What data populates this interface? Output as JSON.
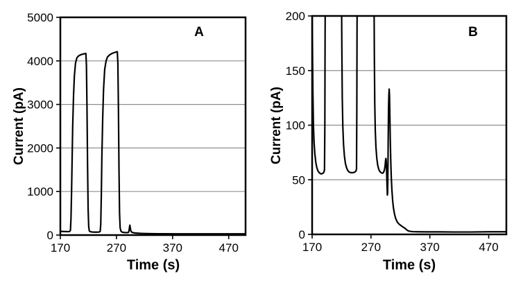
{
  "figure": {
    "background": "#ffffff",
    "line_color": "#000000",
    "grid_color": "#8f8f8f",
    "text_color": "#000000"
  },
  "chart_data": [
    {
      "type": "line",
      "panel_label": "A",
      "xlabel": "Time (s)",
      "ylabel": "Current (pA)",
      "xlim": [
        170,
        500
      ],
      "ylim": [
        0,
        5000
      ],
      "xticks": [
        170,
        270,
        370,
        470
      ],
      "yticks": [
        0,
        1000,
        2000,
        3000,
        4000,
        5000
      ],
      "grid": true,
      "legend": "none",
      "series": [
        {
          "name": "current-trace",
          "points": [
            [
              170,
              85
            ],
            [
              176,
              82
            ],
            [
              183,
              80
            ],
            [
              186.5,
              82
            ],
            [
              188,
              110
            ],
            [
              189,
              400
            ],
            [
              190,
              1000
            ],
            [
              191,
              1750
            ],
            [
              192,
              2500
            ],
            [
              193.5,
              3200
            ],
            [
              195,
              3650
            ],
            [
              197,
              3950
            ],
            [
              199.5,
              4070
            ],
            [
              202,
              4110
            ],
            [
              206,
              4140
            ],
            [
              210,
              4155
            ],
            [
              213,
              4165
            ],
            [
              215.5,
              4170
            ],
            [
              216.5,
              3900
            ],
            [
              217.5,
              2900
            ],
            [
              218.5,
              1600
            ],
            [
              219.5,
              600
            ],
            [
              220.5,
              200
            ],
            [
              221.5,
              100
            ],
            [
              223,
              78
            ],
            [
              227,
              70
            ],
            [
              233,
              68
            ],
            [
              239,
              70
            ],
            [
              241,
              85
            ],
            [
              242,
              250
            ],
            [
              243,
              900
            ],
            [
              244,
              1800
            ],
            [
              245.5,
              2700
            ],
            [
              247,
              3350
            ],
            [
              249,
              3800
            ],
            [
              251.5,
              4000
            ],
            [
              254,
              4090
            ],
            [
              258,
              4140
            ],
            [
              262,
              4170
            ],
            [
              266,
              4190
            ],
            [
              269.5,
              4205
            ],
            [
              271.5,
              4210
            ],
            [
              272.5,
              3950
            ],
            [
              273.5,
              2900
            ],
            [
              274.5,
              1500
            ],
            [
              275.5,
              500
            ],
            [
              276.5,
              170
            ],
            [
              278,
              90
            ],
            [
              280,
              68
            ],
            [
              283,
              60
            ],
            [
              287,
              57
            ],
            [
              290.5,
              57
            ],
            [
              292,
              75
            ],
            [
              293,
              160
            ],
            [
              293.8,
              228
            ],
            [
              294.6,
              170
            ],
            [
              295.5,
              105
            ],
            [
              296.5,
              75
            ],
            [
              298,
              62
            ],
            [
              300,
              54
            ],
            [
              303,
              48
            ],
            [
              307,
              44
            ],
            [
              312,
              40
            ],
            [
              318,
              37
            ],
            [
              325,
              34
            ],
            [
              333,
              32
            ],
            [
              343,
              31
            ],
            [
              355,
              30
            ],
            [
              375,
              29
            ],
            [
              400,
              29
            ],
            [
              430,
              28
            ],
            [
              460,
              28
            ],
            [
              500,
              28
            ]
          ]
        }
      ]
    },
    {
      "type": "line",
      "panel_label": "B",
      "xlabel": "Time (s)",
      "ylabel": "Current (pA)",
      "xlim": [
        170,
        500
      ],
      "ylim": [
        0,
        200
      ],
      "xticks": [
        170,
        270,
        370,
        470
      ],
      "yticks": [
        0,
        50,
        100,
        150,
        200
      ],
      "grid": true,
      "legend": "none",
      "series": [
        {
          "name": "current-trace",
          "points": [
            [
              170,
              215
            ],
            [
              170.6,
              170
            ],
            [
              171.3,
              130
            ],
            [
              172.2,
              100
            ],
            [
              173.3,
              84
            ],
            [
              174.6,
              74
            ],
            [
              176.2,
              66
            ],
            [
              178,
              61
            ],
            [
              180,
              58
            ],
            [
              182,
              56.5
            ],
            [
              184.5,
              55.5
            ],
            [
              186.5,
              55.5
            ],
            [
              188.5,
              56
            ],
            [
              190,
              57
            ],
            [
              191,
              59
            ],
            [
              191.6,
              100
            ],
            [
              192,
              180
            ],
            [
              192.3,
              215
            ],
            [
              220,
              215
            ],
            [
              220.5,
              170
            ],
            [
              221.2,
              125
            ],
            [
              222.2,
              98
            ],
            [
              223.4,
              82
            ],
            [
              224.8,
              72
            ],
            [
              226.5,
              65
            ],
            [
              228.5,
              61
            ],
            [
              230.5,
              58.5
            ],
            [
              233,
              57
            ],
            [
              236,
              56.5
            ],
            [
              239.5,
              56.5
            ],
            [
              242.5,
              57
            ],
            [
              244.5,
              58
            ],
            [
              245.4,
              60
            ],
            [
              245.9,
              110
            ],
            [
              246.3,
              190
            ],
            [
              246.6,
              215
            ],
            [
              275.2,
              215
            ],
            [
              275.7,
              165
            ],
            [
              276.4,
              120
            ],
            [
              277.3,
              95
            ],
            [
              278.4,
              80
            ],
            [
              279.8,
              70
            ],
            [
              281.4,
              63.5
            ],
            [
              283.2,
              59.5
            ],
            [
              285.2,
              57.5
            ],
            [
              287.2,
              56.5
            ],
            [
              289.2,
              56
            ],
            [
              291,
              56.5
            ],
            [
              292.6,
              58.5
            ],
            [
              293.8,
              62
            ],
            [
              294.8,
              68
            ],
            [
              295.4,
              69.5
            ],
            [
              296,
              66
            ],
            [
              296.7,
              55
            ],
            [
              297.3,
              44
            ],
            [
              297.8,
              36
            ],
            [
              298.3,
              38
            ],
            [
              298.8,
              60
            ],
            [
              299.3,
              90
            ],
            [
              299.8,
              115
            ],
            [
              300.4,
              128
            ],
            [
              300.9,
              133
            ],
            [
              301.5,
              126
            ],
            [
              302.1,
              108
            ],
            [
              302.8,
              86
            ],
            [
              303.6,
              67
            ],
            [
              304.5,
              52
            ],
            [
              305.5,
              41
            ],
            [
              306.8,
              31
            ],
            [
              308.2,
              24
            ],
            [
              310,
              18.5
            ],
            [
              312,
              14.5
            ],
            [
              314.5,
              11.5
            ],
            [
              317.5,
              9.5
            ],
            [
              321,
              8
            ],
            [
              325,
              6.5
            ],
            [
              328,
              5.5
            ],
            [
              330.5,
              4.2
            ],
            [
              333,
              3.3
            ],
            [
              336,
              2.8
            ],
            [
              341,
              2.5
            ],
            [
              350,
              2.4
            ],
            [
              365,
              2.3
            ],
            [
              385,
              2.3
            ],
            [
              410,
              2.2
            ],
            [
              440,
              2.2
            ],
            [
              470,
              2.4
            ],
            [
              500,
              2.4
            ]
          ]
        }
      ]
    }
  ]
}
